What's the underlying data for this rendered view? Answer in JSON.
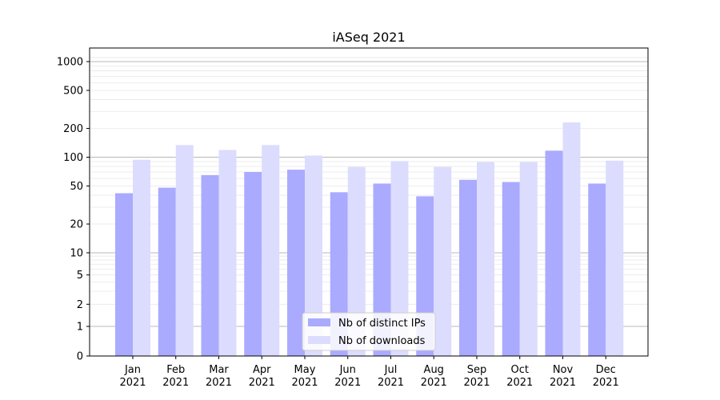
{
  "chart_data": {
    "type": "bar",
    "title": "iASeq 2021",
    "xlabel": "",
    "ylabel": "",
    "y_scale": "symlog",
    "ylim": [
      0,
      1200
    ],
    "grid": "horizontal",
    "legend_position": "bottom-center",
    "categories": [
      "Jan\n2021",
      "Feb\n2021",
      "Mar\n2021",
      "Apr\n2021",
      "May\n2021",
      "Jun\n2021",
      "Jul\n2021",
      "Aug\n2021",
      "Sep\n2021",
      "Oct\n2021",
      "Nov\n2021",
      "Dec\n2021"
    ],
    "series": [
      {
        "name": "Nb of distinct IPs",
        "color": "#aaaaff",
        "values": [
          42,
          48,
          65,
          70,
          74,
          43,
          53,
          39,
          58,
          55,
          117,
          53
        ]
      },
      {
        "name": "Nb of downloads",
        "color": "#dcdcff",
        "values": [
          94,
          134,
          119,
          134,
          104,
          79,
          91,
          79,
          89,
          89,
          231,
          92
        ]
      }
    ],
    "y_ticks": [
      "0",
      "1",
      "2",
      "5",
      "10",
      "20",
      "50",
      "100",
      "200",
      "500",
      "1000"
    ]
  }
}
